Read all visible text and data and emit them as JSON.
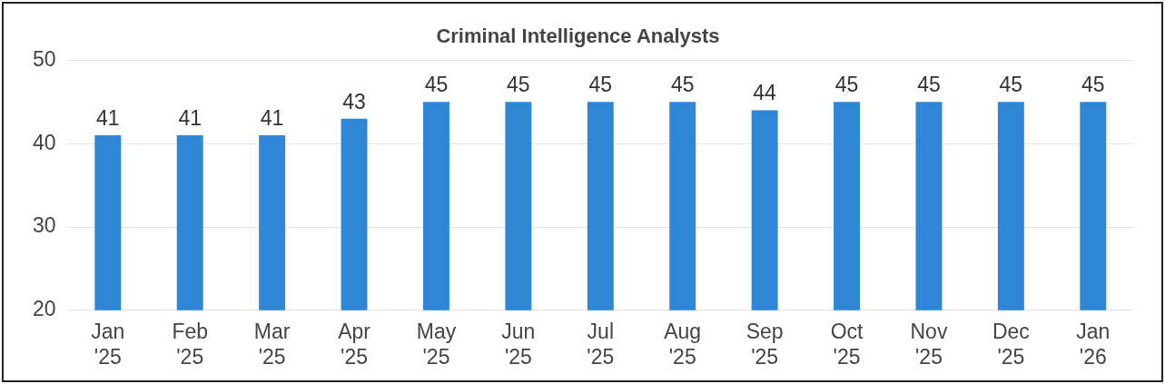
{
  "chart_data": {
    "type": "bar",
    "title": "Criminal Intelligence Analysts",
    "categories": [
      "Jan '25",
      "Feb '25",
      "Mar '25",
      "Apr '25",
      "May '25",
      "Jun '25",
      "Jul '25",
      "Aug '25",
      "Sep '25",
      "Oct '25",
      "Nov '25",
      "Dec '25",
      "Jan '26"
    ],
    "values": [
      41,
      41,
      41,
      43,
      45,
      45,
      45,
      45,
      44,
      45,
      45,
      45,
      45
    ],
    "color": "#2f86d6",
    "ylim": [
      20,
      50
    ],
    "yticks": [
      20,
      30,
      40,
      50
    ],
    "grid": "y",
    "data_labels": true
  }
}
